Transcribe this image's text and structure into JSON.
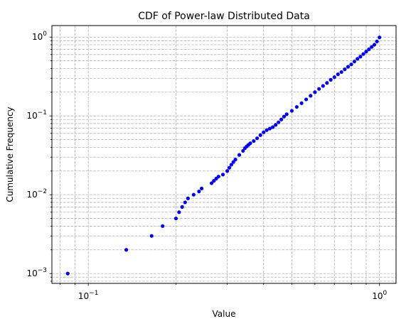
{
  "chart_data": {
    "type": "scatter",
    "title": "CDF of Power-law Distributed Data",
    "xlabel": "Value",
    "ylabel": "Cumulative Frequency",
    "xscale": "log",
    "yscale": "log",
    "xlim": [
      0.075,
      1.14
    ],
    "ylim": [
      0.00075,
      1.4
    ],
    "grid": true,
    "grid_style": "dashed",
    "grid_which": "both",
    "marker_color": "#0000ff",
    "xticks": [
      {
        "value": 0.1,
        "label": "10",
        "exp": "−1"
      },
      {
        "value": 1.0,
        "label": "10",
        "exp": "0"
      }
    ],
    "yticks": [
      {
        "value": 0.001,
        "label": "10",
        "exp": "−3"
      },
      {
        "value": 0.01,
        "label": "10",
        "exp": "−2"
      },
      {
        "value": 0.1,
        "label": "10",
        "exp": "−1"
      },
      {
        "value": 1.0,
        "label": "10",
        "exp": "0"
      }
    ],
    "series": [
      {
        "x": [
          0.085,
          0.135,
          0.165,
          0.18,
          0.2,
          0.205,
          0.21,
          0.215,
          0.22,
          0.23,
          0.24,
          0.245,
          0.265,
          0.27,
          0.275,
          0.28,
          0.29,
          0.3,
          0.305,
          0.31,
          0.315,
          0.32,
          0.33,
          0.34,
          0.345,
          0.35,
          0.355,
          0.36,
          0.37,
          0.38,
          0.39,
          0.4,
          0.41,
          0.42,
          0.43,
          0.44,
          0.45,
          0.46,
          0.47,
          0.48,
          0.5,
          0.52,
          0.54,
          0.56,
          0.58,
          0.6,
          0.62,
          0.64,
          0.66,
          0.68,
          0.7,
          0.72,
          0.74,
          0.76,
          0.78,
          0.8,
          0.82,
          0.84,
          0.86,
          0.88,
          0.9,
          0.92,
          0.94,
          0.96,
          0.98,
          1.0
        ],
        "y": [
          0.001,
          0.002,
          0.003,
          0.004,
          0.005,
          0.006,
          0.007,
          0.008,
          0.009,
          0.01,
          0.011,
          0.012,
          0.014,
          0.015,
          0.016,
          0.017,
          0.018,
          0.02,
          0.022,
          0.024,
          0.026,
          0.028,
          0.032,
          0.036,
          0.039,
          0.041,
          0.043,
          0.045,
          0.048,
          0.052,
          0.057,
          0.062,
          0.066,
          0.069,
          0.072,
          0.077,
          0.083,
          0.09,
          0.098,
          0.105,
          0.116,
          0.13,
          0.145,
          0.162,
          0.18,
          0.2,
          0.22,
          0.24,
          0.262,
          0.287,
          0.31,
          0.337,
          0.36,
          0.39,
          0.42,
          0.45,
          0.49,
          0.53,
          0.565,
          0.61,
          0.655,
          0.7,
          0.75,
          0.8,
          0.88,
          0.99
        ]
      }
    ]
  }
}
